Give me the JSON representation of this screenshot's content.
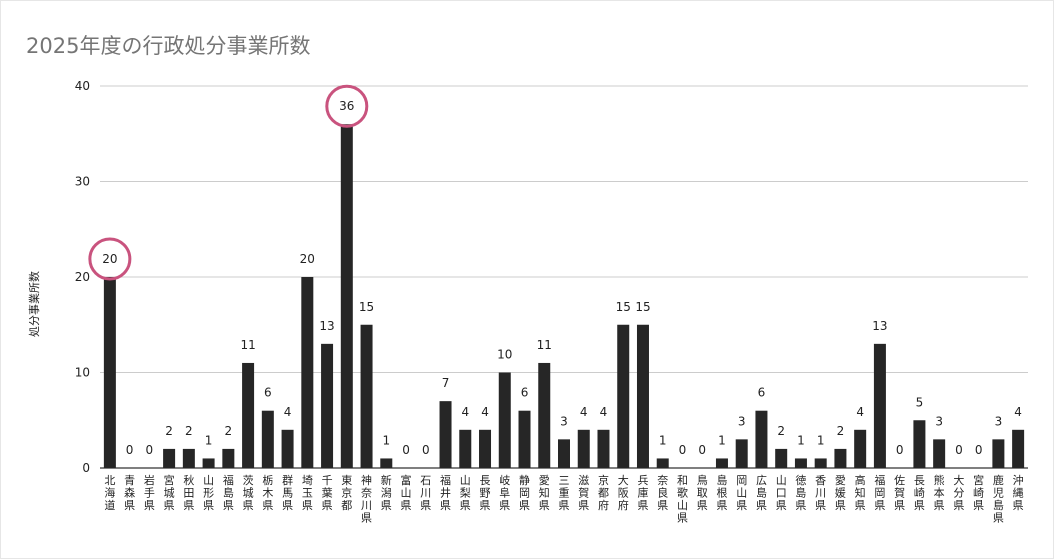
{
  "title": "2025年度の行政処分事業所数",
  "chart_data": {
    "type": "bar",
    "title": "2025年度の行政処分事業所数",
    "xlabel": "",
    "ylabel": "処分事業所数",
    "ylim": [
      0,
      40
    ],
    "yticks": [
      "0",
      "10",
      "20",
      "30",
      "40"
    ],
    "grid": true,
    "bar_color": "#262626",
    "highlight_color": "#c9537e",
    "highlighted": [
      "北海道",
      "東京都"
    ],
    "categories": [
      "北海道",
      "青森県",
      "岩手県",
      "宮城県",
      "秋田県",
      "山形県",
      "福島県",
      "茨城県",
      "栃木県",
      "群馬県",
      "埼玉県",
      "千葉県",
      "東京都",
      "神奈川県",
      "新潟県",
      "富山県",
      "石川県",
      "福井県",
      "山梨県",
      "長野県",
      "岐阜県",
      "静岡県",
      "愛知県",
      "三重県",
      "滋賀県",
      "京都府",
      "大阪府",
      "兵庫県",
      "奈良県",
      "和歌山県",
      "鳥取県",
      "島根県",
      "岡山県",
      "広島県",
      "山口県",
      "徳島県",
      "香川県",
      "愛媛県",
      "高知県",
      "福岡県",
      "佐賀県",
      "長崎県",
      "熊本県",
      "大分県",
      "宮崎県",
      "鹿児島県",
      "沖縄県"
    ],
    "values": [
      20,
      0,
      0,
      2,
      2,
      1,
      2,
      11,
      6,
      4,
      20,
      13,
      36,
      15,
      1,
      0,
      0,
      7,
      4,
      4,
      10,
      6,
      11,
      3,
      4,
      4,
      15,
      15,
      1,
      0,
      0,
      1,
      3,
      6,
      2,
      1,
      1,
      2,
      4,
      13,
      0,
      5,
      3,
      0,
      0,
      3,
      4
    ]
  }
}
